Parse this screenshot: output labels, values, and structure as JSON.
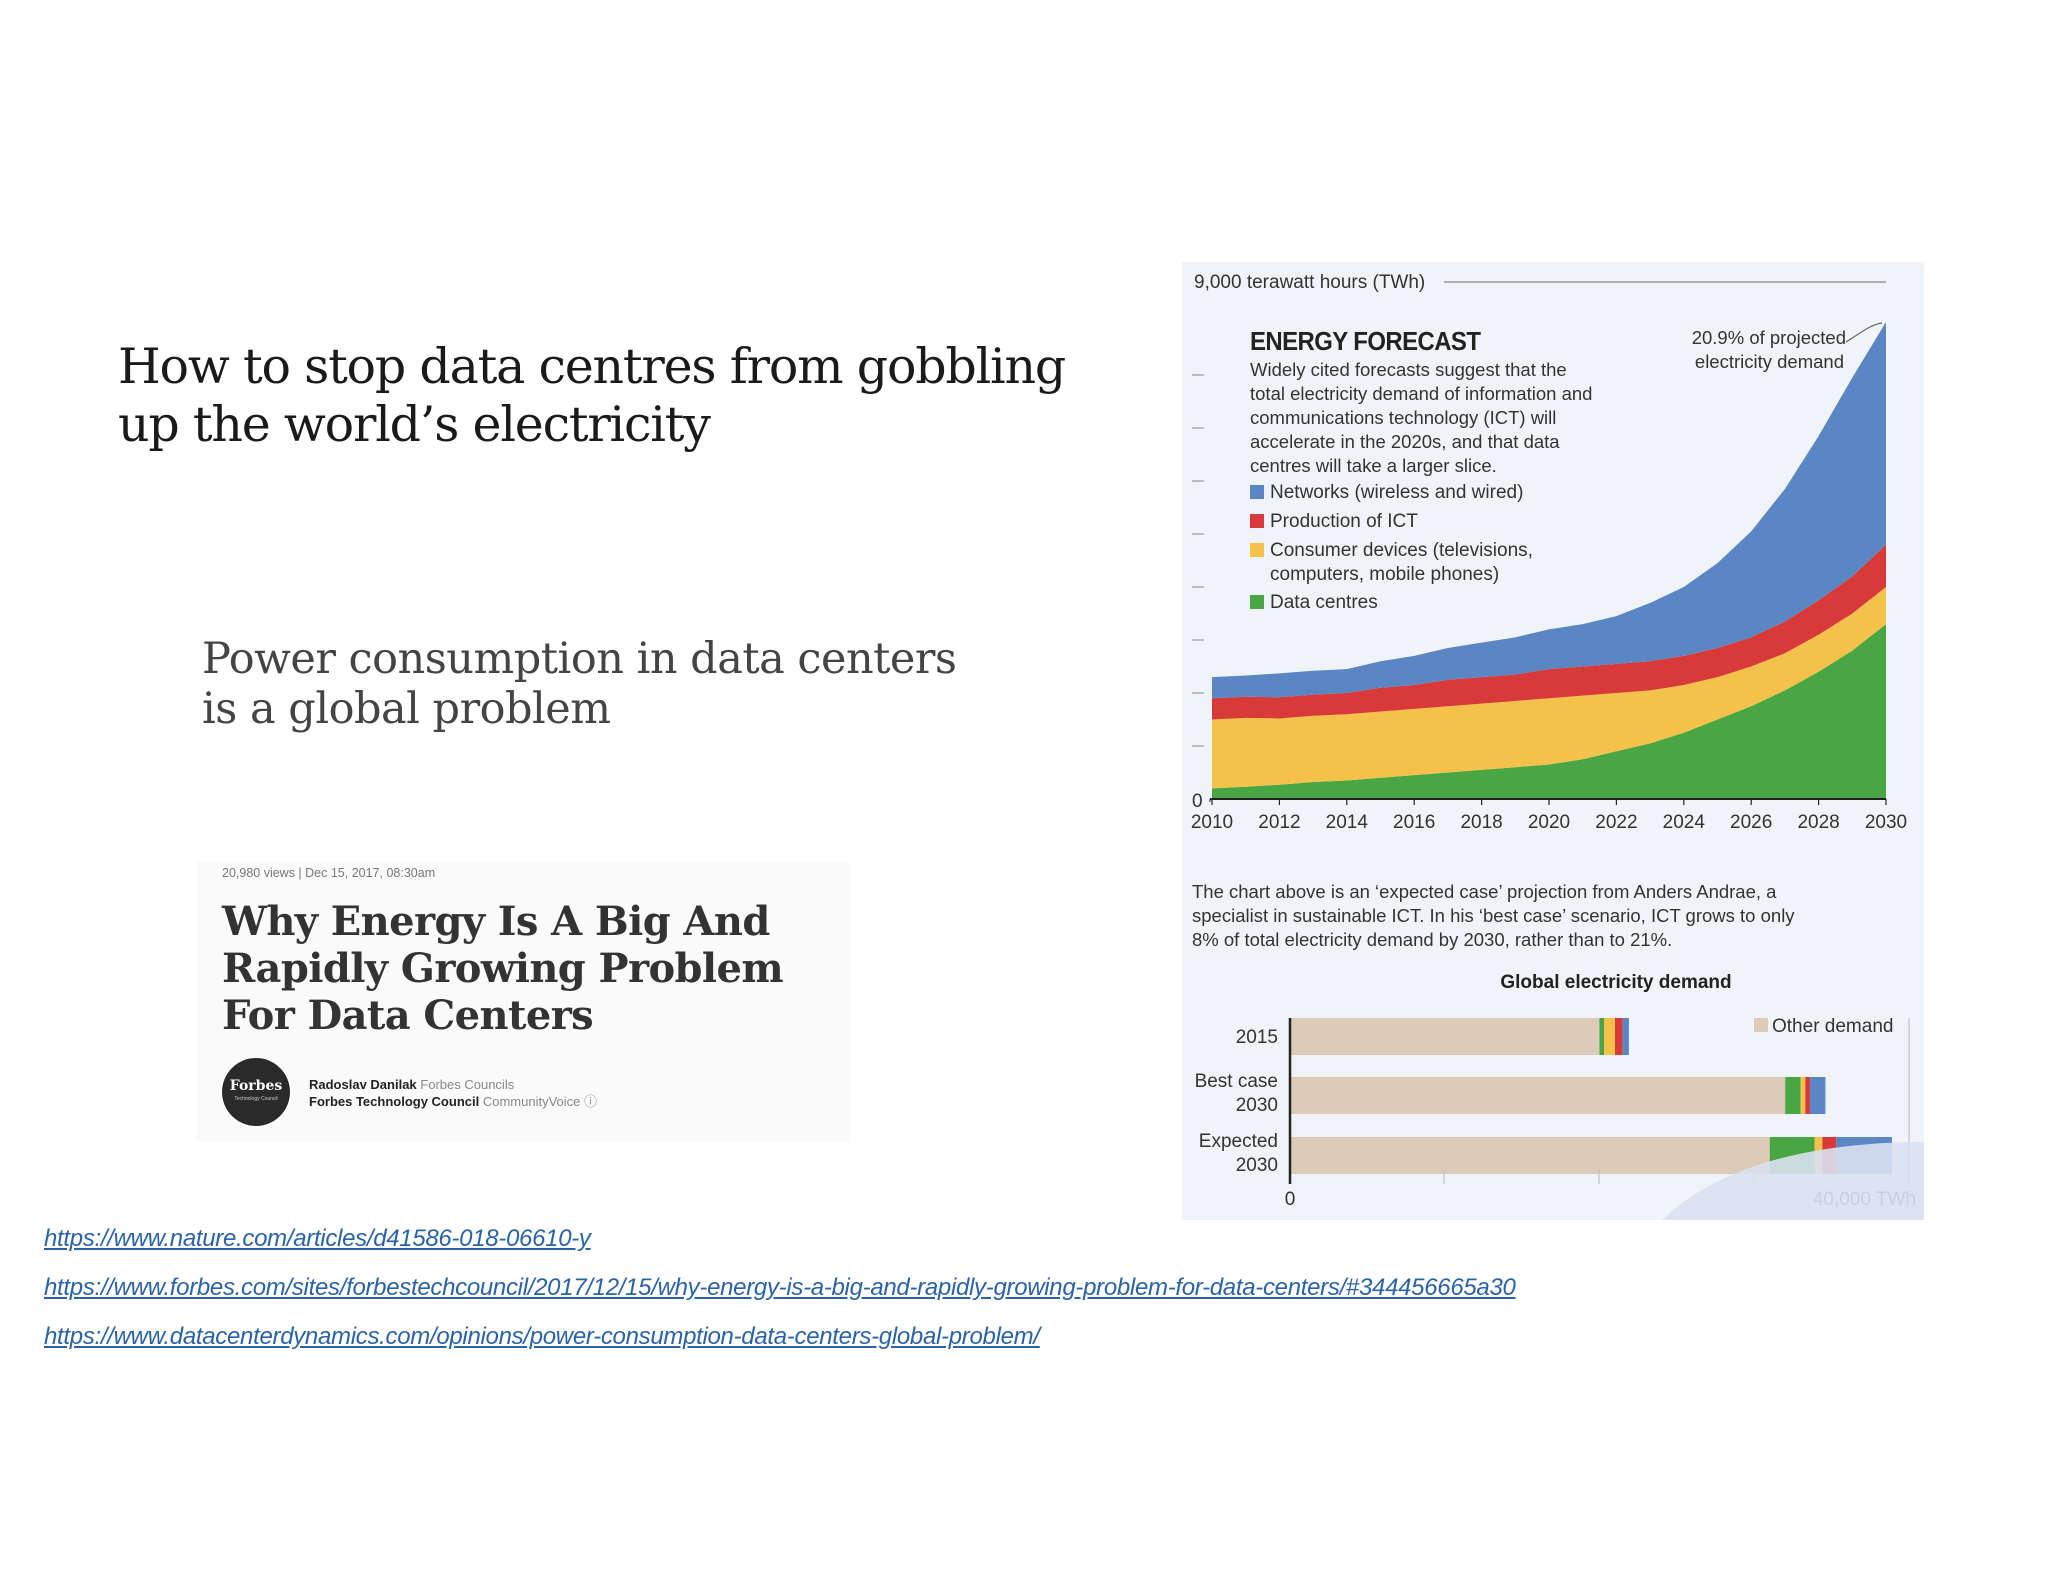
{
  "slide": {
    "headline": "How to stop data centres from gobbling up the world’s electricity",
    "subheadline": "Power consumption in data centers is a global problem"
  },
  "article_card": {
    "meta": "20,980 views  |  Dec 15, 2017, 08:30am",
    "title": "Why Energy Is A Big And Rapidly Growing Problem For Data Centers",
    "logo_text": "Forbes",
    "logo_subtext": "Technology Council",
    "author": "Radoslav Danilak",
    "author_tag": "Forbes Councils",
    "council": "Forbes Technology Council",
    "council_tag": "CommunityVoice"
  },
  "links": [
    "https://www.nature.com/articles/d41586-018-06610-y",
    "https://www.forbes.com/sites/forbestechcouncil/2017/12/15/why-energy-is-a-big-and-rapidly-growing-problem-for-data-centers/#344456665a30",
    "https://www.datacenterdynamics.com/opinions/power-consumption-data-centers-global-problem/"
  ],
  "colors": {
    "networks": "#5b86c4",
    "production": "#d83a3a",
    "consumer": "#f4c24a",
    "datacentres": "#4aa644",
    "other": "#dccbb8",
    "link": "#2a62a8"
  },
  "figure": {
    "intro": [
      "Widely cited forecasts suggest that the",
      "total electricity demand of information and",
      "communications technology (ICT) will",
      "accelerate in the 2020s, and that data",
      "centres will take a larger slice."
    ],
    "caption": [
      "The chart above is an ‘expected case’ projection from Anders Andrae, a",
      "specialist in sustainable ICT. In his ‘best case’ scenario, ICT grows to only",
      "8% of total electricity demand by 2030, rather than to 21%."
    ]
  },
  "chart_data": [
    {
      "type": "area",
      "title": "ENERGY FORECAST",
      "ylabel": "9,000 terawatt hours (TWh)",
      "ylim": [
        0,
        9000
      ],
      "x": [
        2010,
        2011,
        2012,
        2013,
        2014,
        2015,
        2016,
        2017,
        2018,
        2019,
        2020,
        2021,
        2022,
        2023,
        2024,
        2025,
        2026,
        2027,
        2028,
        2029,
        2030
      ],
      "xticks": [
        "2010",
        "2012",
        "2014",
        "2016",
        "2018",
        "2020",
        "2022",
        "2024",
        "2026",
        "2028",
        "2030"
      ],
      "yticks": [
        "0"
      ],
      "stacked": true,
      "series": [
        {
          "name": "Data centres",
          "color": "#4aa644",
          "values": [
            200,
            230,
            270,
            320,
            350,
            400,
            450,
            500,
            550,
            600,
            650,
            750,
            900,
            1050,
            1250,
            1500,
            1750,
            2050,
            2400,
            2800,
            3300
          ]
        },
        {
          "name": "Consumer devices (televisions, computers, mobile phones)",
          "color": "#f4c24a",
          "values": [
            1300,
            1300,
            1250,
            1250,
            1250,
            1250,
            1250,
            1250,
            1250,
            1250,
            1250,
            1200,
            1100,
            1000,
            900,
            800,
            750,
            700,
            700,
            700,
            700
          ]
        },
        {
          "name": "Production of ICT",
          "color": "#d83a3a",
          "values": [
            400,
            400,
            400,
            400,
            400,
            450,
            450,
            500,
            500,
            500,
            550,
            550,
            550,
            550,
            550,
            550,
            550,
            600,
            650,
            700,
            800
          ]
        },
        {
          "name": "Networks (wireless and wired)",
          "color": "#5b86c4",
          "values": [
            400,
            400,
            450,
            450,
            450,
            500,
            550,
            600,
            650,
            700,
            750,
            800,
            900,
            1100,
            1300,
            1600,
            2000,
            2500,
            3100,
            3750,
            4200
          ]
        }
      ],
      "annotation": "20.9% of projected electricity demand",
      "legend": "top-left"
    },
    {
      "type": "bar",
      "orientation": "horizontal",
      "stacked": true,
      "title": "Global electricity demand",
      "categories": [
        "2015",
        "Best case 2030",
        "Expected 2030"
      ],
      "xlim": [
        0,
        40000
      ],
      "xticks": [
        "0",
        "40,000 TWh"
      ],
      "series": [
        {
          "name": "Other demand",
          "color": "#dccbb8",
          "values": [
            20000,
            32000,
            31000
          ]
        },
        {
          "name": "Data centres",
          "color": "#4aa644",
          "values": [
            300,
            1000,
            2900
          ]
        },
        {
          "name": "Consumer devices",
          "color": "#f4c24a",
          "values": [
            700,
            300,
            500
          ]
        },
        {
          "name": "Production of ICT",
          "color": "#d83a3a",
          "values": [
            500,
            300,
            900
          ]
        },
        {
          "name": "Networks",
          "color": "#5b86c4",
          "values": [
            400,
            1000,
            3600
          ]
        }
      ],
      "legend": "top-right"
    }
  ]
}
